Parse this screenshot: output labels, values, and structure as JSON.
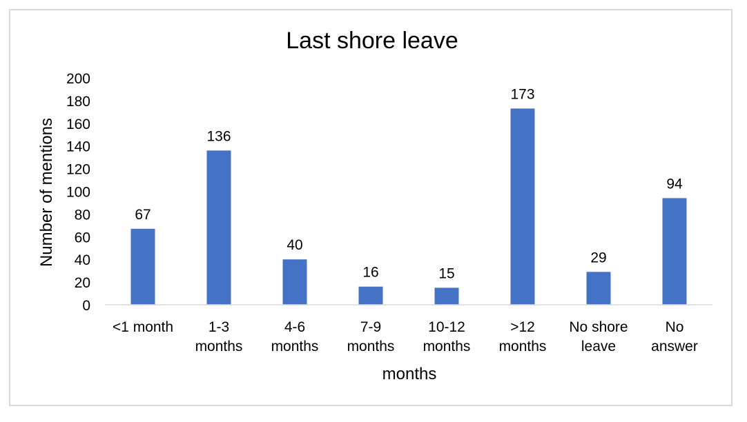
{
  "chart_data": {
    "type": "bar",
    "title": "Last shore leave",
    "xlabel": "months",
    "ylabel": "Number of mentions",
    "categories": [
      [
        "<1 month"
      ],
      [
        "1-3",
        "months"
      ],
      [
        "4-6",
        "months"
      ],
      [
        "7-9",
        "months"
      ],
      [
        "10-12",
        "months"
      ],
      [
        ">12",
        "months"
      ],
      [
        "No shore",
        "leave"
      ],
      [
        "No",
        "answer"
      ]
    ],
    "values": [
      67,
      136,
      40,
      16,
      15,
      173,
      29,
      94
    ],
    "ylim": [
      0,
      200
    ],
    "yticks": [
      0,
      20,
      40,
      60,
      80,
      100,
      120,
      140,
      160,
      180,
      200
    ],
    "grid": false,
    "legend": "none",
    "bar_color": "#4472c4"
  }
}
